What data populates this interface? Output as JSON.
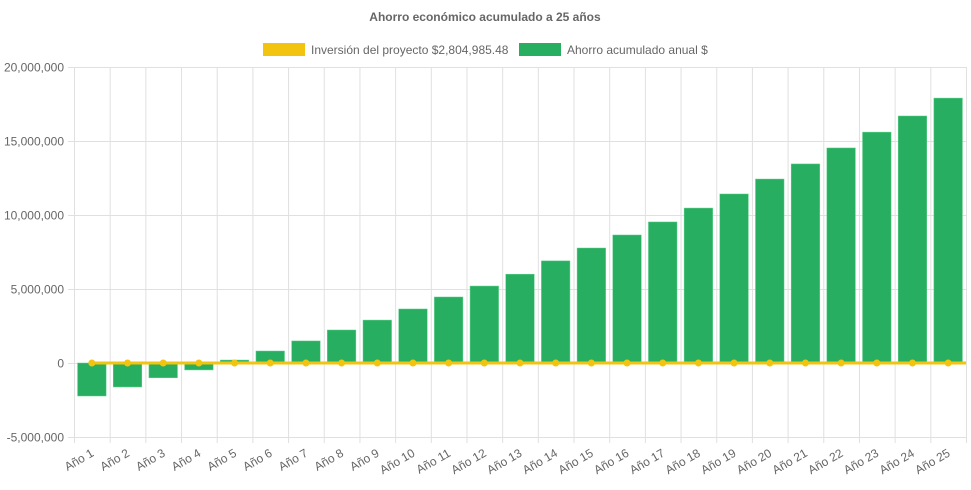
{
  "chart_data": {
    "type": "bar",
    "title": "Ahorro económico acumulado a 25 años",
    "categories": [
      "Año 1",
      "Año 2",
      "Año 3",
      "Año 4",
      "Año 5",
      "Año 6",
      "Año 7",
      "Año 8",
      "Año 9",
      "Año 10",
      "Año 11",
      "Año 12",
      "Año 13",
      "Año 14",
      "Año 15",
      "Año 16",
      "Año 17",
      "Año 18",
      "Año 19",
      "Año 20",
      "Año 21",
      "Año 22",
      "Año 23",
      "Año 24",
      "Año 25"
    ],
    "series": [
      {
        "name": "Inversión del proyecto $2,804,985.48",
        "type": "line",
        "color": "#f2c40f",
        "values": [
          0,
          0,
          0,
          0,
          0,
          0,
          0,
          0,
          0,
          0,
          0,
          0,
          0,
          0,
          0,
          0,
          0,
          0,
          0,
          0,
          0,
          0,
          0,
          0,
          0
        ]
      },
      {
        "name": "Ahorro acumulado anual $",
        "type": "bar",
        "color": "#27ae60",
        "values": [
          -2230000,
          -1620000,
          -1000000,
          -470000,
          200000,
          810000,
          1490000,
          2230000,
          2900000,
          3650000,
          4460000,
          5200000,
          6000000,
          6900000,
          7770000,
          8650000,
          9530000,
          10470000,
          11420000,
          12430000,
          13450000,
          14530000,
          15600000,
          16690000,
          17900000
        ]
      }
    ],
    "ylim": [
      -5000000,
      20000000
    ],
    "yticks": [
      "20,000,000",
      "15,000,000",
      "10,000,000",
      "5,000,000",
      "0",
      "-5,000,000"
    ],
    "ytick_values": [
      20000000,
      15000000,
      10000000,
      5000000,
      0,
      -5000000
    ],
    "grid": true,
    "legend": "top"
  }
}
